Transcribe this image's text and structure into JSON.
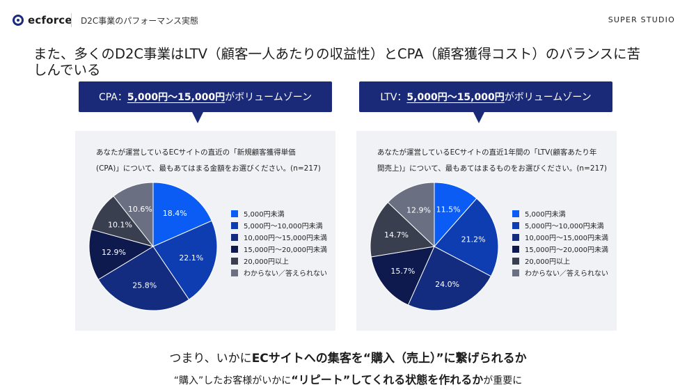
{
  "header": {
    "logo_text": "ecforce",
    "breadcrumb": "D2C事業のパフォーマンス実態",
    "brand": "SUPER STUDIO"
  },
  "headline": "また、多くのD2C事業はLTV（顧客一人あたりの収益性）とCPA（顧客獲得コスト）のバランスに苦しんでいる",
  "callouts": [
    {
      "prefix": "CPA：",
      "highlight": "5,000円〜15,000円",
      "suffix": "がボリュームゾーン"
    },
    {
      "prefix": "LTV：",
      "highlight": "5,000円〜15,000円",
      "suffix": "がボリュームゾーン"
    }
  ],
  "legend_colors": [
    "#0b5cf5",
    "#0d3db0",
    "#132c80",
    "#0e1a4e",
    "#3a3f50",
    "#6b6f82"
  ],
  "chart_data": [
    {
      "type": "pie",
      "title": "あなたが運営しているECサイトの直近の「新規顧客獲得単価(CPA)」について、最もあてはまる金額をお選びください。(n=217)",
      "question_lines": [
        "あなたが運営しているECサイトの直近の「新規顧客獲得単価",
        "(CPA)」について、最もあてはまる金額をお選びください。(n=217)"
      ],
      "categories": [
        "5,000円未満",
        "5,000円〜10,000円未満",
        "10,000円〜15,000円未満",
        "15,000円〜20,000円未満",
        "20,000円以上",
        "わからない／答えられない"
      ],
      "values": [
        18.4,
        22.1,
        25.8,
        12.9,
        10.1,
        10.6
      ],
      "labels": [
        "18.4%",
        "22.1%",
        "25.8%",
        "12.9%",
        "10.1%",
        "10.6%"
      ],
      "legend_position": "right"
    },
    {
      "type": "pie",
      "title": "あなたが運営しているECサイトの直近1年間の「LTV(顧客あたり年間売上)」について、最もあてはまるものをお選びください。(n=217)",
      "question_lines": [
        "あなたが運営しているECサイトの直近1年間の「LTV(顧客あたり年",
        "間売上)」について、最もあてはまるものをお選びください。(n=217)"
      ],
      "categories": [
        "5,000円未満",
        "5,000円〜10,000円未満",
        "10,000円〜15,000円未満",
        "15,000円〜20,000円未満",
        "20,000円以上",
        "わからない／答えられない"
      ],
      "values": [
        11.5,
        21.2,
        24.0,
        15.7,
        14.7,
        12.9
      ],
      "labels": [
        "11.5%",
        "21.2%",
        "24.0%",
        "15.7%",
        "14.7%",
        "12.9%"
      ],
      "legend_position": "right"
    }
  ],
  "footer": {
    "line1_a": "つまり、いかに",
    "line1_b": "ECサイトへの集客を“購入（売上）”に繋げられるか",
    "line2_a": "“購入”したお客様がいかに",
    "line2_b": "“リピート”してくれる状態を作れるか",
    "line2_c": "が重要に"
  }
}
